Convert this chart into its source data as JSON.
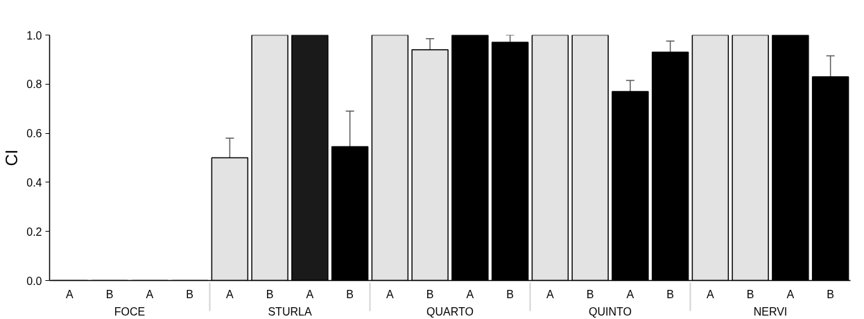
{
  "chart_data": {
    "type": "bar",
    "ylabel": "CI",
    "categories": [
      "A",
      "B",
      "A",
      "B",
      "A",
      "B",
      "A",
      "B",
      "A",
      "B",
      "A",
      "B",
      "A",
      "B",
      "A",
      "B",
      "A",
      "B",
      "A",
      "B"
    ],
    "annotations": [
      "FOCE",
      "STURLA",
      "QUARTO",
      "QUINTO",
      "NERVI"
    ],
    "values": [
      0,
      0,
      0,
      0,
      0.5,
      1.0,
      1.0,
      0.545,
      1.0,
      0.94,
      1.0,
      0.97,
      1.0,
      1.0,
      0.77,
      0.93,
      1.0,
      1.0,
      1.0,
      0.83
    ],
    "errors": [
      null,
      null,
      null,
      null,
      [
        0.5,
        0.58
      ],
      null,
      null,
      [
        0.545,
        0.69
      ],
      null,
      [
        0.94,
        0.985
      ],
      null,
      [
        0.97,
        1.0
      ],
      null,
      null,
      [
        0.77,
        0.815
      ],
      [
        0.93,
        0.975
      ],
      null,
      null,
      null,
      [
        0.83,
        0.915
      ]
    ],
    "colors": [
      "#e3e3e3",
      "#e3e3e3",
      "#000000",
      "#000000",
      "#e3e3e3",
      "#e3e3e3",
      "#1a1a1a",
      "#000000",
      "#e3e3e3",
      "#e3e3e3",
      "#000000",
      "#000000",
      "#e3e3e3",
      "#e3e3e3",
      "#000000",
      "#000000",
      "#e3e3e3",
      "#e3e3e3",
      "#000000",
      "#000000"
    ],
    "ylim": [
      0,
      1
    ],
    "yticks": [
      {
        "value": 0,
        "label": "0.0"
      },
      {
        "value": 0.2,
        "label": "0.2"
      },
      {
        "value": 0.4,
        "label": "0.4"
      },
      {
        "value": 0.6,
        "label": "0.6"
      },
      {
        "value": 0.8,
        "label": "0.8"
      },
      {
        "value": 1,
        "label": "1.0"
      }
    ],
    "grid": false
  }
}
